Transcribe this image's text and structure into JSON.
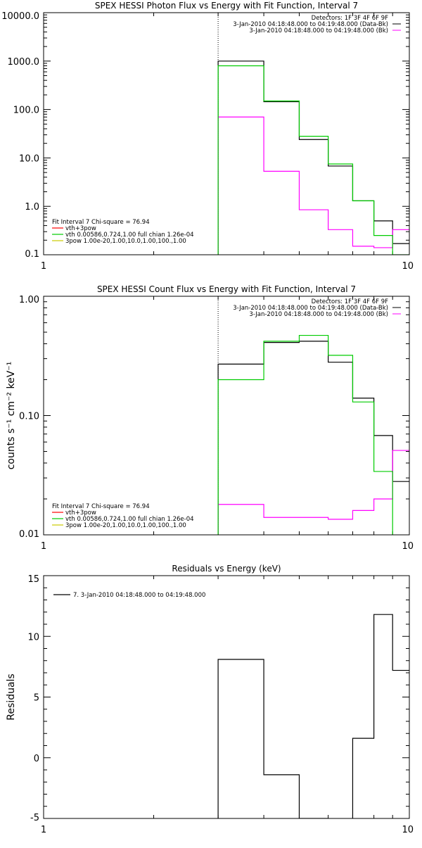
{
  "chart_data": [
    {
      "type": "line",
      "title": "SPEX HESSI Photon Flux vs Energy with Fit Function, Interval 7",
      "xlabel": "",
      "ylabel": "",
      "xscale": "log",
      "yscale": "log",
      "xlim": [
        1,
        10
      ],
      "ylim": [
        0.1,
        10000
      ],
      "x_tick_labels": [
        "1",
        "10"
      ],
      "y_tick_labels": [
        "0.1",
        "1.0",
        "10.0",
        "100.0",
        "1000.0",
        "10000.0"
      ],
      "y_tick_values": [
        0.1,
        1,
        10,
        100,
        1000,
        10000
      ],
      "vline_x": 3.0,
      "info": [
        "Detectors: 1F 3F 4F 6F 9F",
        "3-Jan-2010 04:18:48.000 to 04:19:48.000 (Data-Bk)",
        "3-Jan-2010 04:18:48.000 to 04:19:48.000 (Bk)"
      ],
      "info_colors": [
        "#000000",
        "#000000",
        "#ff00ff"
      ],
      "legend": [
        {
          "text": "Fit Interval 7    Chi-square = 76.94",
          "color": ""
        },
        {
          "text": "vth+3pow",
          "color": "#ff0000"
        },
        {
          "text": "vth 0.00586,0.724,1.00  full chian 1.26e-04",
          "color": "#00cc00"
        },
        {
          "text": "3pow 1.00e-20,1.00,10.0,1.00,100.,1.00",
          "color": "#cccc00"
        }
      ],
      "series": [
        {
          "name": "Data-Bk",
          "color": "#000000",
          "edges": [
            3,
            4,
            5,
            6,
            7,
            8,
            9,
            10
          ],
          "values": [
            1000,
            145,
            24,
            6.8,
            1.3,
            0.5,
            0.17
          ]
        },
        {
          "name": "Bk",
          "color": "#ff00ff",
          "edges": [
            3,
            4,
            5,
            6,
            7,
            8,
            9,
            10
          ],
          "values": [
            70,
            5.3,
            0.85,
            0.33,
            0.15,
            0.14,
            0.33
          ]
        },
        {
          "name": "vth",
          "color": "#00cc00",
          "edges": [
            3,
            4,
            5,
            6,
            7,
            8,
            9,
            10
          ],
          "values": [
            800,
            150,
            28,
            7.5,
            1.3,
            0.25,
            0.1
          ]
        }
      ]
    },
    {
      "type": "line",
      "title": "SPEX HESSI Count Flux vs Energy with Fit Function, Interval 7",
      "xlabel": "",
      "ylabel": "counts s⁻¹ cm⁻² keV⁻¹",
      "xscale": "log",
      "yscale": "log",
      "xlim": [
        1,
        10
      ],
      "ylim": [
        0.01,
        1.0
      ],
      "x_tick_labels": [
        "1",
        "10"
      ],
      "y_tick_labels": [
        "0.01",
        "0.10",
        "1.00"
      ],
      "y_tick_values": [
        0.01,
        0.1,
        1.0
      ],
      "vline_x": 3.0,
      "info": [
        "Detectors: 1F 3F 4F 6F 9F",
        "3-Jan-2010 04:18:48.000 to 04:19:48.000 (Data-Bk)",
        "3-Jan-2010 04:18:48.000 to 04:19:48.000 (Bk)"
      ],
      "info_colors": [
        "#000000",
        "#000000",
        "#ff00ff"
      ],
      "legend": [
        {
          "text": "Fit Interval 7    Chi-square = 76.94",
          "color": ""
        },
        {
          "text": "vth+3pow",
          "color": "#ff0000"
        },
        {
          "text": "vth 0.00586,0.724,1.00  full chian 1.26e-04",
          "color": "#00cc00"
        },
        {
          "text": "3pow 1.00e-20,1.00,10.0,1.00,100.,1.00",
          "color": "#cccc00"
        }
      ],
      "series": [
        {
          "name": "Data-Bk",
          "color": "#000000",
          "edges": [
            3,
            4,
            5,
            6,
            7,
            8,
            9,
            10
          ],
          "values": [
            0.27,
            0.41,
            0.42,
            0.28,
            0.14,
            0.068,
            0.028
          ]
        },
        {
          "name": "Bk",
          "color": "#ff00ff",
          "edges": [
            3,
            4,
            5,
            6,
            7,
            8,
            9,
            10
          ],
          "values": [
            0.018,
            0.014,
            0.014,
            0.0135,
            0.016,
            0.02,
            0.051
          ]
        },
        {
          "name": "vth",
          "color": "#00cc00",
          "edges": [
            3,
            4,
            5,
            6,
            7,
            8,
            9,
            10
          ],
          "values": [
            0.2,
            0.42,
            0.47,
            0.32,
            0.13,
            0.034,
            0.008
          ]
        }
      ]
    },
    {
      "type": "line",
      "title": "Residuals vs Energy (keV)",
      "xlabel": "",
      "ylabel": "Residuals",
      "xscale": "log",
      "yscale": "linear",
      "xlim": [
        1,
        10
      ],
      "ylim": [
        -5,
        15
      ],
      "x_tick_labels": [
        "1",
        "10"
      ],
      "y_tick_labels": [
        "-5",
        "0",
        "5",
        "10",
        "15"
      ],
      "y_tick_values": [
        -5,
        0,
        5,
        10,
        15
      ],
      "vline_x": null,
      "info": [],
      "info_colors": [],
      "legend": [
        {
          "text": "7.  3-Jan-2010 04:18:48.000 to 04:19:48.000",
          "color": "#000000"
        }
      ],
      "series": [
        {
          "name": "",
          "color": "#000000",
          "edges": [
            3,
            4,
            5,
            6,
            7,
            8,
            9,
            10
          ],
          "values": [
            8.1,
            -1.4,
            -5.0,
            -5.1,
            1.6,
            11.8,
            7.2
          ]
        }
      ]
    }
  ]
}
